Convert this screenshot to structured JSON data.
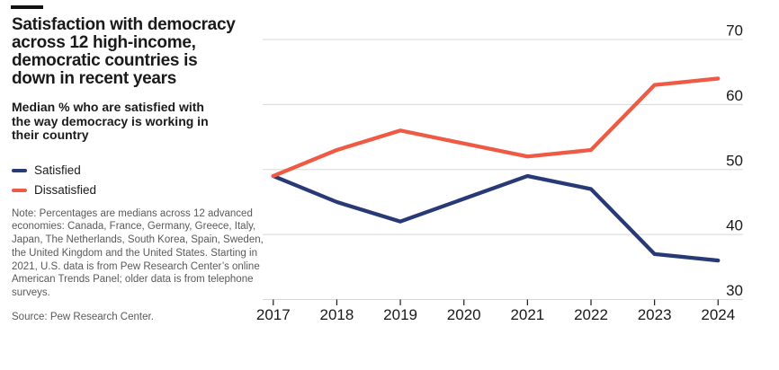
{
  "header": {
    "title": "Satisfaction with democracy\nacross 12 high-income,\ndemocratic countries is\ndown in recent years",
    "subtitle": "Median % who are satisfied with\nthe way democracy is working in\ntheir country"
  },
  "legend": [
    {
      "label": "Satisfied",
      "color": "#273a76"
    },
    {
      "label": "Dissatisfied",
      "color": "#ee5a43"
    }
  ],
  "note": "Note: Percentages are medians across 12 advanced economies: Canada, France, Germany, Greece, Italy, Japan, The Netherlands, South Korea, Spain, Sweden, the United Kingdom and the United States. Starting in 2021, U.S. data is from Pew Research Center’s online American Trends Panel; older data is from telephone surveys.",
  "source": "Source: Pew Research Center.",
  "chart_data": {
    "type": "line",
    "title": "Satisfaction with democracy across 12 high-income, democratic countries is down in recent years",
    "subtitle": "Median % who are satisfied with the way democracy is working in their country",
    "categories": [
      "2017",
      "2018",
      "2019",
      "2020",
      "2021",
      "2022",
      "2023",
      "2024"
    ],
    "series": [
      {
        "name": "Satisfied",
        "color": "#273a76",
        "values": [
          49,
          45,
          42,
          null,
          49,
          47,
          37,
          36
        ]
      },
      {
        "name": "Dissatisfied",
        "color": "#ee5a43",
        "values": [
          49,
          53,
          56,
          null,
          52,
          53,
          63,
          64
        ]
      }
    ],
    "ylim": [
      30,
      70
    ],
    "yticks": [
      30,
      40,
      50,
      60,
      70
    ],
    "grid": "horizontal",
    "axis_side": "right",
    "legend_position": "left",
    "gridline_color": "#d8d8d8",
    "axis_label_color": "#1a1a1a",
    "no_data_gap_note": "no 2020 data point; line connects 2019 to 2021"
  }
}
